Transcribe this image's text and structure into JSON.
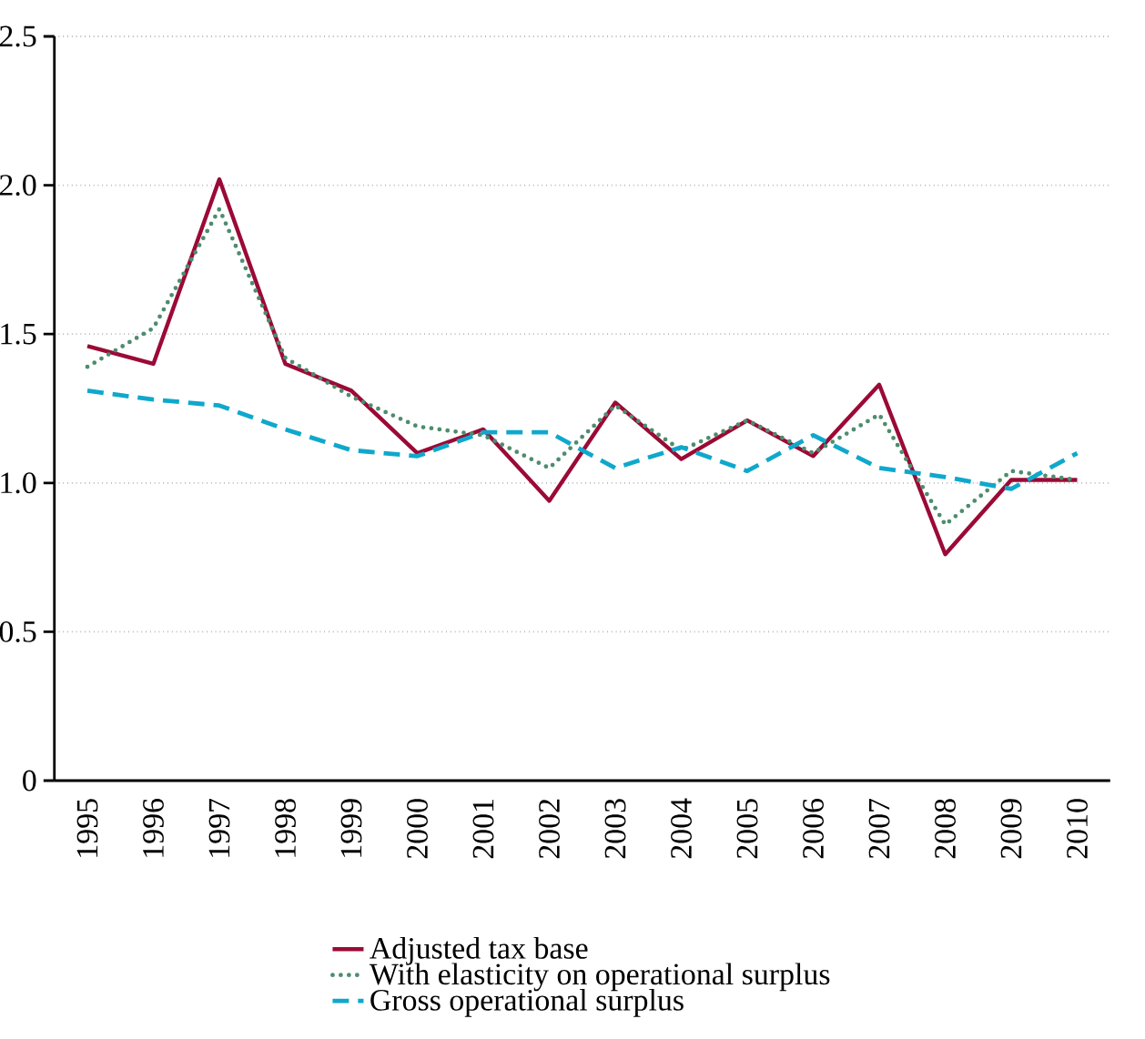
{
  "chart_data": {
    "type": "line",
    "categories": [
      "1995",
      "1996",
      "1997",
      "1998",
      "1999",
      "2000",
      "2001",
      "2002",
      "2003",
      "2004",
      "2005",
      "2006",
      "2007",
      "2008",
      "2009",
      "2010"
    ],
    "series": [
      {
        "name": "Adjusted tax base",
        "color": "#9b0a36",
        "line_style": "solid",
        "values": [
          1.46,
          1.4,
          2.02,
          1.4,
          1.31,
          1.1,
          1.18,
          0.94,
          1.27,
          1.08,
          1.21,
          1.09,
          1.33,
          0.76,
          1.01,
          1.01
        ]
      },
      {
        "name": "With elasticity on operational surplus",
        "color": "#4e8c6e",
        "line_style": "dotted",
        "values": [
          1.39,
          1.52,
          1.92,
          1.42,
          1.29,
          1.19,
          1.16,
          1.05,
          1.26,
          1.11,
          1.21,
          1.1,
          1.23,
          0.86,
          1.04,
          1.01
        ]
      },
      {
        "name": "Gross operational surplus",
        "color": "#0fa8cc",
        "line_style": "dashed",
        "values": [
          1.31,
          1.28,
          1.26,
          1.18,
          1.11,
          1.09,
          1.17,
          1.17,
          1.05,
          1.12,
          1.04,
          1.16,
          1.05,
          1.02,
          0.98,
          1.1
        ]
      }
    ],
    "ylim": [
      0,
      2.5
    ],
    "yticks": [
      0,
      0.5,
      {
        "value": 1,
        "label": "1.0"
      },
      1.5,
      {
        "value": 2,
        "label": "2.0"
      },
      2.5
    ],
    "grid": "y",
    "legend": "bottom",
    "marker": "none"
  }
}
